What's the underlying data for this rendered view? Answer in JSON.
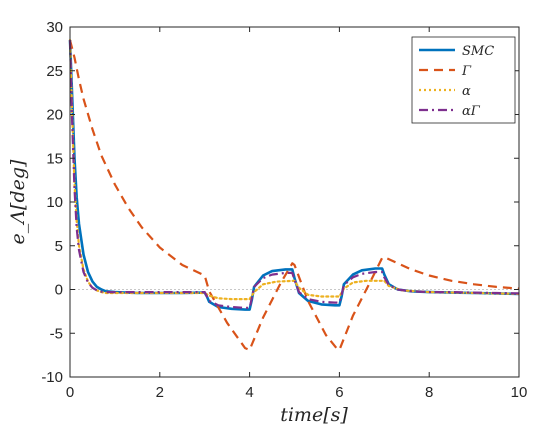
{
  "chart_data": {
    "type": "line",
    "title": "",
    "xlabel": "time[s]",
    "ylabel": "e_Λ[deg]",
    "xlim": [
      0,
      10
    ],
    "ylim": [
      -10,
      30
    ],
    "xticks": [
      "0",
      "2",
      "4",
      "6",
      "8",
      "10"
    ],
    "yticks": [
      "-10",
      "-5",
      "0",
      "5",
      "10",
      "15",
      "20",
      "25",
      "30"
    ],
    "legend_position": "top-right",
    "grid": false,
    "series": [
      {
        "name": "SMC",
        "color": "#0072BD",
        "style": "solid",
        "x": [
          0,
          0.05,
          0.1,
          0.15,
          0.2,
          0.3,
          0.4,
          0.5,
          0.6,
          0.7,
          0.8,
          1.0,
          1.5,
          2.0,
          2.5,
          3.0,
          3.05,
          3.1,
          3.3,
          3.6,
          3.9,
          4.0,
          4.05,
          4.1,
          4.3,
          4.5,
          4.8,
          4.95,
          5.0,
          5.1,
          5.3,
          5.6,
          5.9,
          6.0,
          6.05,
          6.1,
          6.3,
          6.5,
          6.8,
          6.95,
          7.0,
          7.1,
          7.3,
          7.6,
          8.0,
          8.5,
          9.0,
          9.5,
          10.0
        ],
        "y": [
          28.5,
          22.0,
          15.0,
          10.5,
          7.5,
          4.0,
          2.0,
          0.9,
          0.3,
          0.0,
          -0.2,
          -0.3,
          -0.4,
          -0.4,
          -0.4,
          -0.35,
          -0.8,
          -1.4,
          -2.0,
          -2.2,
          -2.3,
          -2.3,
          -1.2,
          0.3,
          1.6,
          2.1,
          2.3,
          2.3,
          1.3,
          -0.4,
          -1.3,
          -1.7,
          -1.8,
          -1.8,
          -0.8,
          0.6,
          1.7,
          2.2,
          2.4,
          2.4,
          1.7,
          0.6,
          0.0,
          -0.2,
          -0.3,
          -0.35,
          -0.4,
          -0.45,
          -0.5
        ]
      },
      {
        "name": "Γ",
        "color": "#D95319",
        "style": "dashed",
        "x": [
          0,
          0.1,
          0.2,
          0.3,
          0.5,
          0.7,
          1.0,
          1.3,
          1.6,
          2.0,
          2.5,
          3.0,
          3.1,
          3.5,
          3.9,
          4.0,
          4.3,
          4.7,
          4.95,
          5.0,
          5.3,
          5.7,
          5.95,
          6.0,
          6.3,
          6.7,
          6.95,
          7.0,
          7.3,
          7.6,
          8.0,
          8.5,
          9.0,
          9.5,
          10.0
        ],
        "y": [
          28.5,
          26.5,
          24.0,
          21.8,
          18.3,
          15.3,
          12.0,
          9.3,
          7.1,
          4.8,
          2.8,
          1.6,
          -0.2,
          -3.8,
          -6.7,
          -6.9,
          -3.2,
          0.8,
          3.0,
          2.8,
          -1.3,
          -5.2,
          -6.8,
          -6.9,
          -3.0,
          1.0,
          3.6,
          3.7,
          3.0,
          2.3,
          1.6,
          1.0,
          0.6,
          0.3,
          0.1
        ]
      },
      {
        "name": "α",
        "color": "#EDB120",
        "style": "dotted",
        "x": [
          0,
          0.05,
          0.1,
          0.15,
          0.2,
          0.3,
          0.4,
          0.5,
          0.6,
          0.7,
          0.8,
          1.0,
          1.5,
          2.0,
          2.5,
          3.0,
          3.1,
          3.3,
          3.6,
          4.0,
          4.1,
          4.3,
          4.6,
          5.0,
          5.1,
          5.3,
          5.6,
          6.0,
          6.1,
          6.3,
          6.6,
          7.0,
          7.1,
          7.4,
          8.0,
          9.0,
          10.0
        ],
        "y": [
          28.5,
          20.0,
          12.0,
          7.8,
          5.0,
          2.3,
          0.9,
          0.2,
          -0.1,
          -0.3,
          -0.4,
          -0.4,
          -0.4,
          -0.4,
          -0.4,
          -0.4,
          -0.7,
          -1.0,
          -1.1,
          -1.1,
          -0.3,
          0.6,
          0.9,
          1.0,
          0.2,
          -0.6,
          -0.8,
          -0.8,
          0.1,
          0.8,
          1.0,
          1.0,
          0.4,
          -0.1,
          -0.3,
          -0.4,
          -0.5
        ]
      },
      {
        "name": "αΓ",
        "color": "#7E2F8E",
        "style": "dashdot",
        "x": [
          0,
          0.05,
          0.1,
          0.15,
          0.2,
          0.3,
          0.4,
          0.5,
          0.6,
          0.7,
          0.8,
          1.0,
          1.5,
          2.0,
          2.5,
          3.0,
          3.05,
          3.1,
          3.3,
          3.6,
          3.9,
          4.0,
          4.05,
          4.1,
          4.3,
          4.5,
          4.8,
          4.95,
          5.0,
          5.1,
          5.3,
          5.6,
          5.9,
          6.0,
          6.05,
          6.1,
          6.3,
          6.5,
          6.8,
          6.95,
          7.0,
          7.1,
          7.3,
          7.6,
          8.0,
          8.5,
          9.0,
          9.5,
          10.0
        ],
        "y": [
          28.5,
          19.0,
          11.5,
          7.0,
          4.5,
          2.0,
          0.8,
          0.2,
          -0.1,
          -0.25,
          -0.3,
          -0.3,
          -0.3,
          -0.3,
          -0.3,
          -0.3,
          -0.8,
          -1.3,
          -1.8,
          -2.0,
          -2.1,
          -2.1,
          -1.0,
          0.3,
          1.3,
          1.7,
          1.9,
          1.9,
          1.1,
          -0.3,
          -1.1,
          -1.4,
          -1.5,
          -1.5,
          -0.6,
          0.5,
          1.4,
          1.8,
          2.0,
          2.0,
          1.4,
          0.5,
          0.0,
          -0.2,
          -0.3,
          -0.3,
          -0.35,
          -0.4,
          -0.45
        ]
      }
    ]
  }
}
